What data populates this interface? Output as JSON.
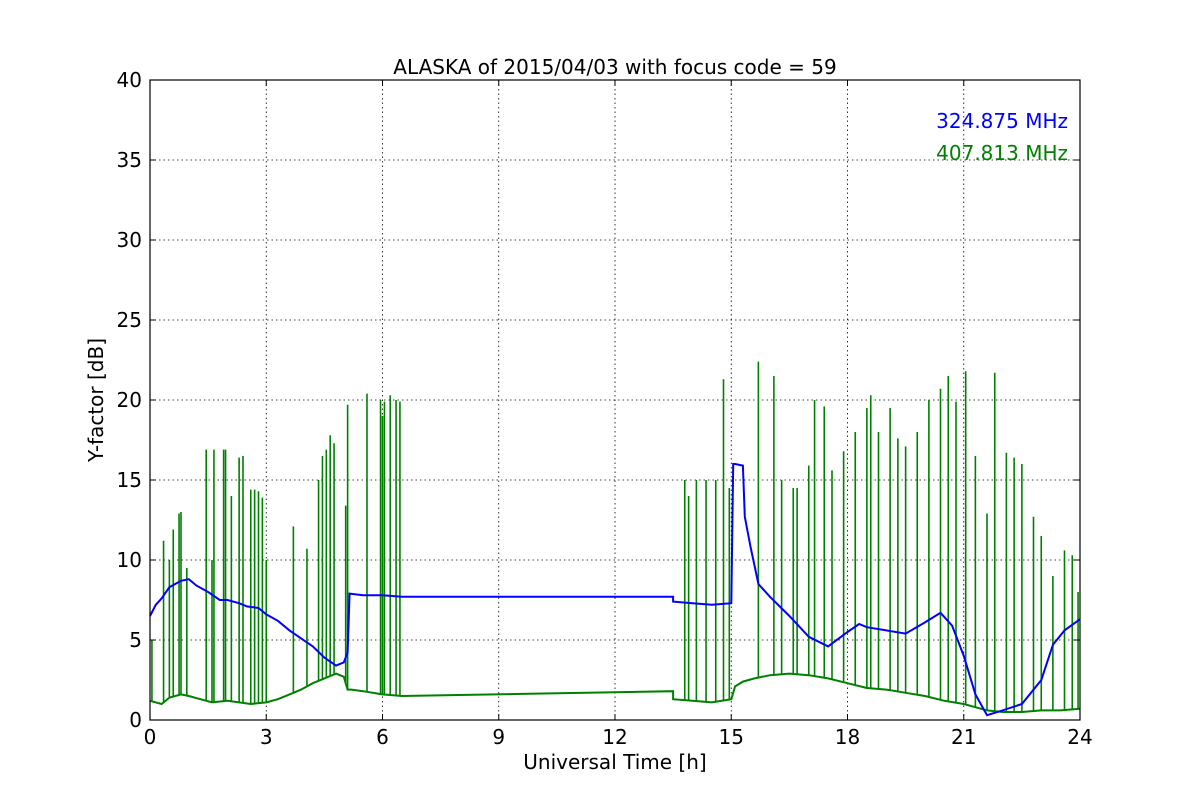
{
  "chart_data": {
    "type": "line",
    "title": "ALASKA of 2015/04/03 with focus code = 59",
    "xlabel": "Universal Time [h]",
    "ylabel": "Y-factor [dB]",
    "xlim": [
      0,
      24
    ],
    "ylim": [
      0,
      40
    ],
    "x_ticks": [
      0,
      3,
      6,
      9,
      12,
      15,
      18,
      21,
      24
    ],
    "y_ticks": [
      0,
      5,
      10,
      15,
      20,
      25,
      30,
      35,
      40
    ],
    "grid": true,
    "legend_position": "top-right",
    "series": [
      {
        "name": "324.875 MHz",
        "color": "#0000ff",
        "x": [
          0.0,
          0.15,
          0.3,
          0.5,
          0.8,
          1.0,
          1.2,
          1.5,
          1.8,
          2.0,
          2.3,
          2.5,
          2.8,
          3.0,
          3.3,
          3.6,
          3.9,
          4.2,
          4.5,
          4.8,
          5.0,
          5.1,
          5.15,
          5.5,
          6.0,
          6.5,
          13.5,
          13.5,
          14.0,
          14.5,
          15.0,
          15.05,
          15.1,
          15.3,
          15.35,
          15.5,
          15.7,
          16.0,
          16.5,
          17.0,
          17.5,
          18.0,
          18.3,
          18.5,
          19.0,
          19.5,
          20.0,
          20.4,
          20.7,
          21.0,
          21.3,
          21.6,
          22.0,
          22.5,
          23.0,
          23.3,
          23.6,
          24.0
        ],
        "y": [
          6.5,
          7.2,
          7.6,
          8.3,
          8.7,
          8.8,
          8.4,
          8.0,
          7.5,
          7.5,
          7.3,
          7.1,
          7.0,
          6.6,
          6.2,
          5.6,
          5.1,
          4.6,
          3.9,
          3.4,
          3.6,
          4.2,
          7.9,
          7.8,
          7.8,
          7.7,
          7.7,
          7.4,
          7.3,
          7.2,
          7.3,
          16.0,
          16.0,
          15.9,
          12.7,
          10.8,
          8.5,
          7.7,
          6.5,
          5.2,
          4.6,
          5.5,
          6.0,
          5.8,
          5.6,
          5.4,
          6.1,
          6.7,
          5.9,
          4.0,
          1.6,
          0.3,
          0.6,
          1.0,
          2.5,
          4.7,
          5.6,
          6.3
        ]
      },
      {
        "name": "407.813 MHz",
        "color": "#008000",
        "x": [
          0.0,
          0.3,
          0.5,
          0.8,
          1.0,
          1.3,
          1.6,
          2.0,
          2.3,
          2.6,
          3.0,
          3.3,
          3.6,
          3.9,
          4.2,
          4.5,
          4.8,
          5.0,
          5.1,
          5.2,
          5.5,
          6.0,
          6.5,
          13.5,
          13.5,
          14.0,
          14.5,
          15.0,
          15.1,
          15.3,
          15.6,
          16.0,
          16.5,
          17.0,
          17.5,
          18.0,
          18.5,
          19.0,
          19.5,
          20.0,
          20.5,
          21.0,
          21.3,
          21.6,
          22.0,
          22.5,
          23.0,
          23.5,
          24.0
        ],
        "y": [
          1.2,
          1.0,
          1.4,
          1.6,
          1.5,
          1.3,
          1.1,
          1.2,
          1.1,
          1.0,
          1.1,
          1.3,
          1.6,
          1.9,
          2.3,
          2.6,
          2.9,
          2.7,
          1.9,
          1.9,
          1.8,
          1.6,
          1.5,
          1.8,
          1.3,
          1.2,
          1.1,
          1.3,
          2.1,
          2.4,
          2.6,
          2.8,
          2.9,
          2.8,
          2.6,
          2.3,
          2.0,
          1.9,
          1.7,
          1.5,
          1.2,
          1.0,
          0.8,
          0.6,
          0.5,
          0.5,
          0.6,
          0.6,
          0.7
        ]
      }
    ],
    "green_spikes": [
      [
        0.05,
        5.0
      ],
      [
        0.35,
        11.2
      ],
      [
        0.5,
        10.0
      ],
      [
        0.6,
        11.9
      ],
      [
        0.75,
        12.9
      ],
      [
        0.8,
        13.0
      ],
      [
        0.95,
        9.5
      ],
      [
        1.45,
        16.9
      ],
      [
        1.6,
        10.0
      ],
      [
        1.65,
        16.9
      ],
      [
        1.9,
        16.9
      ],
      [
        1.95,
        16.9
      ],
      [
        2.1,
        14.0
      ],
      [
        2.3,
        16.4
      ],
      [
        2.4,
        16.5
      ],
      [
        2.6,
        14.4
      ],
      [
        2.7,
        14.4
      ],
      [
        2.8,
        14.3
      ],
      [
        2.9,
        13.9
      ],
      [
        3.0,
        10.0
      ],
      [
        3.7,
        12.1
      ],
      [
        4.05,
        10.7
      ],
      [
        4.35,
        15.0
      ],
      [
        4.45,
        16.5
      ],
      [
        4.55,
        16.9
      ],
      [
        4.65,
        17.8
      ],
      [
        4.75,
        17.3
      ],
      [
        5.05,
        13.4
      ],
      [
        5.1,
        19.7
      ],
      [
        5.6,
        20.4
      ],
      [
        5.95,
        20.0
      ],
      [
        6.0,
        19.0
      ],
      [
        6.05,
        19.9
      ],
      [
        6.2,
        20.3
      ],
      [
        6.35,
        20.0
      ],
      [
        6.45,
        19.9
      ],
      [
        13.8,
        15.0
      ],
      [
        13.9,
        14.0
      ],
      [
        14.1,
        15.0
      ],
      [
        14.35,
        15.0
      ],
      [
        14.6,
        15.0
      ],
      [
        14.8,
        21.3
      ],
      [
        14.95,
        14.5
      ],
      [
        15.7,
        22.4
      ],
      [
        16.1,
        21.5
      ],
      [
        16.3,
        15.0
      ],
      [
        16.6,
        14.5
      ],
      [
        16.7,
        14.5
      ],
      [
        17.0,
        15.9
      ],
      [
        17.15,
        20.0
      ],
      [
        17.4,
        19.6
      ],
      [
        17.6,
        15.6
      ],
      [
        17.9,
        16.8
      ],
      [
        18.2,
        18.0
      ],
      [
        18.5,
        19.5
      ],
      [
        18.6,
        20.3
      ],
      [
        18.8,
        18.0
      ],
      [
        19.1,
        19.5
      ],
      [
        19.3,
        17.6
      ],
      [
        19.5,
        17.1
      ],
      [
        19.8,
        18.0
      ],
      [
        20.1,
        20.0
      ],
      [
        20.4,
        20.7
      ],
      [
        20.6,
        21.5
      ],
      [
        20.8,
        19.9
      ],
      [
        21.05,
        21.8
      ],
      [
        21.3,
        16.5
      ],
      [
        21.6,
        12.9
      ],
      [
        21.8,
        21.7
      ],
      [
        22.1,
        16.7
      ],
      [
        22.3,
        16.4
      ],
      [
        22.5,
        16.0
      ],
      [
        22.8,
        12.7
      ],
      [
        23.0,
        11.5
      ],
      [
        23.3,
        9.0
      ],
      [
        23.6,
        10.6
      ],
      [
        23.8,
        10.3
      ],
      [
        23.95,
        8.0
      ]
    ]
  }
}
